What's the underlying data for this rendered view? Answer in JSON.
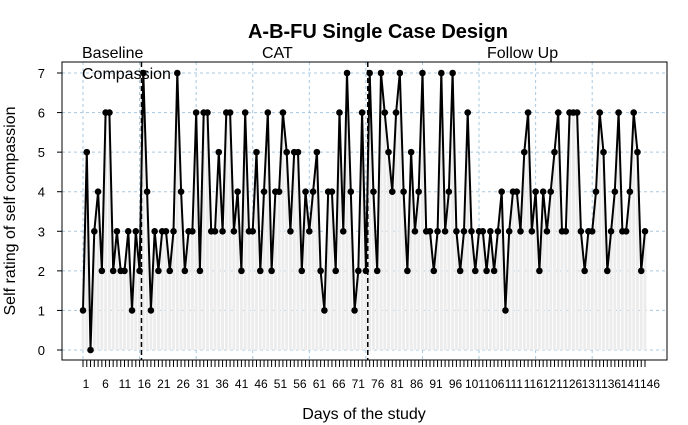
{
  "chart_data": {
    "type": "line",
    "title": "A-B-FU Single Case Design",
    "xlabel": "Days of the study",
    "ylabel": "Self rating of self compassion",
    "xlim": [
      1,
      150
    ],
    "ylim": [
      0,
      7
    ],
    "yticks": [
      0,
      1,
      2,
      3,
      4,
      5,
      6,
      7
    ],
    "grid": true,
    "phase_boundaries": [
      16.5,
      76.5
    ],
    "phases": [
      {
        "label": "Baseline",
        "sublabel": "Compassion",
        "start": 1,
        "end": 16
      },
      {
        "label": "CAT",
        "start": 17,
        "end": 76
      },
      {
        "label": "Follow Up",
        "start": 77,
        "end": 150
      }
    ],
    "x_tick_labels": [
      "1",
      "6",
      "11",
      "16",
      "21",
      "26",
      "31",
      "36",
      "41",
      "46",
      "51",
      "56",
      "61",
      "66",
      "71",
      "76",
      "81",
      "86",
      "91",
      "96",
      "101",
      "106",
      "111",
      "116",
      "121",
      "126",
      "131",
      "136",
      "141",
      "146"
    ],
    "series": [
      {
        "x": [
          1,
          2,
          3,
          4,
          5,
          6,
          7,
          8,
          9,
          10,
          11,
          12,
          13,
          14,
          15,
          16,
          17,
          18,
          19,
          20,
          21,
          22,
          23,
          24,
          25,
          26,
          27,
          28,
          29,
          30,
          31,
          32,
          33,
          34,
          35,
          36,
          37,
          38,
          39,
          40,
          41,
          42,
          43,
          44,
          45,
          46,
          47,
          48,
          49,
          50,
          51,
          52,
          53,
          54,
          55,
          56,
          57,
          58,
          59,
          60,
          61,
          62,
          63,
          64,
          65,
          66,
          67,
          68,
          69,
          70,
          71,
          72,
          73,
          74,
          75,
          76,
          77,
          78,
          79,
          80,
          81,
          82,
          83,
          84,
          85,
          86,
          87,
          88,
          89,
          90,
          91,
          92,
          93,
          94,
          95,
          96,
          97,
          98,
          99,
          100,
          101,
          102,
          103,
          104,
          105,
          106,
          107,
          108,
          109,
          110,
          111,
          112,
          113,
          114,
          115,
          116,
          117,
          118,
          119,
          120,
          121,
          122,
          123,
          124,
          125,
          126,
          127,
          128,
          129,
          130,
          131,
          132,
          133,
          134,
          135,
          136,
          137,
          138,
          139,
          140,
          141,
          142,
          143,
          144,
          145,
          146,
          147,
          148,
          149,
          150
        ],
        "values": [
          1,
          5,
          0,
          3,
          4,
          2,
          6,
          6,
          2,
          3,
          2,
          2,
          3,
          1,
          3,
          2,
          7,
          4,
          1,
          3,
          2,
          3,
          3,
          2,
          3,
          7,
          4,
          2,
          3,
          3,
          6,
          2,
          6,
          6,
          3,
          3,
          5,
          3,
          6,
          6,
          3,
          4,
          2,
          6,
          3,
          3,
          5,
          2,
          4,
          6,
          2,
          4,
          4,
          6,
          5,
          3,
          5,
          5,
          2,
          4,
          3,
          4,
          5,
          2,
          1,
          4,
          4,
          2,
          6,
          3,
          7,
          4,
          1,
          2,
          6,
          2,
          7,
          4,
          2,
          7,
          6,
          5,
          4,
          6,
          7,
          4,
          2,
          5,
          3,
          4,
          7,
          3,
          3,
          2,
          3,
          7,
          3,
          4,
          7,
          3,
          2,
          3,
          6,
          3,
          2,
          3,
          3,
          2,
          3,
          2,
          3,
          4,
          1,
          3,
          4,
          4,
          3,
          5,
          6,
          3,
          4,
          2,
          4,
          3,
          4,
          5,
          6,
          3,
          3,
          6,
          6,
          6,
          3,
          2,
          3,
          3,
          4,
          6,
          5,
          2,
          3,
          4,
          6,
          3,
          3,
          4,
          6,
          5,
          2,
          3
        ]
      }
    ]
  }
}
